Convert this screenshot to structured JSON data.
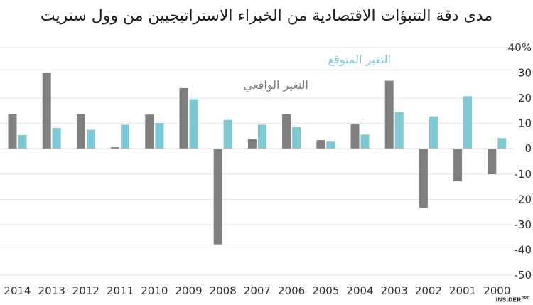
{
  "chart_data": {
    "type": "bar",
    "title": "مدى دقة التنبؤات الاقتصادية من الخبراء الاستراتيجيين من وول ستريت",
    "categories": [
      "2014",
      "2013",
      "2012",
      "2011",
      "2010",
      "2009",
      "2008",
      "2007",
      "2006",
      "2005",
      "2004",
      "2003",
      "2002",
      "2001",
      "2000"
    ],
    "series": [
      {
        "name": "التغير الواقعي",
        "color": "#7f7f7f",
        "values": [
          13.7,
          30,
          13.6,
          0.6,
          13.5,
          24,
          -37.8,
          3.8,
          13.6,
          3.4,
          9.6,
          26.9,
          -23.3,
          -12.9,
          -10.1
        ]
      },
      {
        "name": "التغير المتوقع",
        "color": "#7fc9d4",
        "values": [
          5.4,
          8.2,
          7.5,
          9.5,
          10.2,
          19.6,
          11.4,
          9.5,
          8.6,
          2.8,
          5.6,
          14.5,
          12.8,
          20.8,
          4.2
        ]
      }
    ],
    "y_ticks": [
      "40%",
      "30",
      "20",
      "10",
      "0",
      "-10",
      "-20",
      "-30",
      "-40",
      "-50"
    ],
    "ylim": [
      -50,
      40
    ],
    "grid": true,
    "legend": "inline-top-center"
  },
  "brand": {
    "name": "INSIDER",
    "suffix": "PRO"
  }
}
